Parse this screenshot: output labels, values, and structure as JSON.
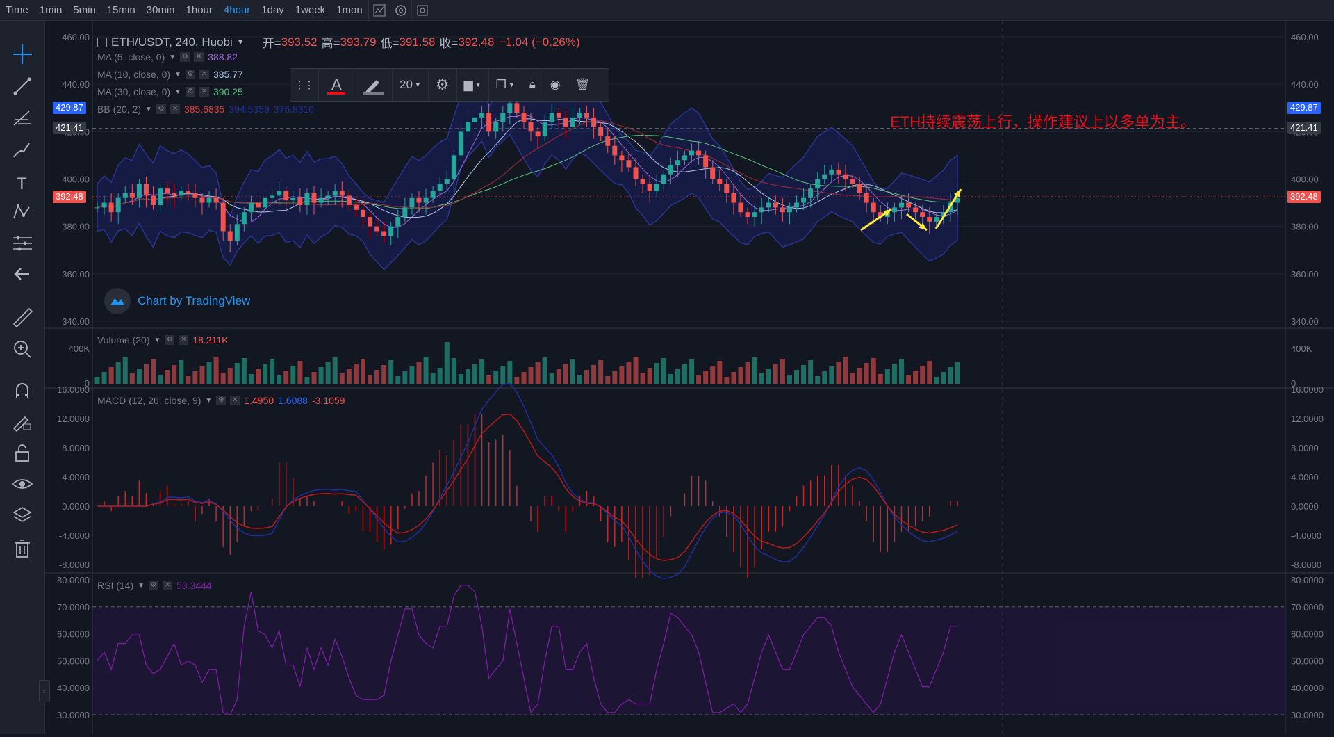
{
  "toolbar": {
    "timeframes": [
      "Time",
      "1min",
      "5min",
      "15min",
      "30min",
      "1hour",
      "4hour",
      "1day",
      "1week",
      "1mon"
    ],
    "active_timeframe": "4hour"
  },
  "sidebar": {
    "tools": [
      "crosshair-icon",
      "trend-line-icon",
      "fib-icon",
      "brush-icon",
      "text-icon",
      "pattern-icon",
      "forecast-icon",
      "back-arrow-icon",
      "ruler-icon",
      "zoom-in-icon",
      "magnet-icon",
      "lock-draw-icon",
      "unlock-icon",
      "eye-icon",
      "layers-icon",
      "trash-icon"
    ]
  },
  "main_legend": {
    "symbol": "ETH/USDT, 240, Huobi",
    "open_label": "开=",
    "open": "393.52",
    "high_label": "高=",
    "high": "393.79",
    "low_label": "低=",
    "low": "391.58",
    "close_label": "收=",
    "close": "392.48",
    "change": "−1.04 (−0.26%)"
  },
  "indicators": [
    {
      "label": "MA (5, close, 0)",
      "value": "388.82",
      "color": "#9c6bd8"
    },
    {
      "label": "MA (10, close, 0)",
      "value": "385.77",
      "color": "#b2c8e8"
    },
    {
      "label": "MA (30, close, 0)",
      "value": "390.25",
      "color": "#58c27d"
    },
    {
      "label": "BB (20, 2)",
      "value": "385.6835",
      "value2": "394.5359",
      "value3": "376.8310",
      "color": "#e04040"
    }
  ],
  "floating_toolbar": {
    "line_width": "20"
  },
  "price_axis": {
    "ticks": [
      "460.00",
      "440.00",
      "420.00",
      "400.00",
      "380.00",
      "360.00",
      "340.00"
    ],
    "tag_upper": "429.87",
    "tag_mid": "421.41",
    "tag_last": "392.48"
  },
  "annotation_text": "ETH持续震荡上行，操作建议上以多单为主。",
  "watermark": "Chart by TradingView",
  "volume_pane": {
    "legend": "Volume (20)",
    "value": "18.211K",
    "ticks": [
      "400K",
      "0"
    ]
  },
  "macd_pane": {
    "legend": "MACD (12, 26, close, 9)",
    "value1": "1.4950",
    "value2": "1.6088",
    "value3": "-3.1059",
    "ticks": [
      "16.0000",
      "12.0000",
      "8.0000",
      "4.0000",
      "0.0000",
      "-4.0000",
      "-8.0000"
    ]
  },
  "rsi_pane": {
    "legend": "RSI (14)",
    "value": "53.3444",
    "ticks": [
      "80.0000",
      "70.0000",
      "60.0000",
      "50.0000",
      "40.0000",
      "30.0000"
    ]
  },
  "colors": {
    "up": "#26a69a",
    "down": "#ef5350",
    "bb_fill": "#1a237e",
    "annotation": "#e8101a",
    "arrow": "#ffeb3b"
  },
  "chart_data": {
    "type": "line",
    "title": "ETH/USDT, 240, Huobi",
    "xlabel": "",
    "ylabel": "",
    "ylim": [
      340,
      462
    ],
    "series": [
      {
        "values": [
          388,
          390,
          386,
          392,
          394,
          392,
          398,
          393,
          389,
          396,
          394,
          393,
          395,
          394,
          392,
          390,
          392,
          390,
          378,
          374,
          381,
          386,
          390,
          388,
          392,
          393,
          395,
          391,
          392,
          389,
          394,
          390,
          392,
          393,
          395,
          393,
          389,
          387,
          384,
          380,
          378,
          376,
          380,
          384,
          388,
          392,
          390,
          392,
          395,
          398,
          400,
          410,
          420,
          424,
          426,
          428,
          420,
          424,
          428,
          432,
          428,
          424,
          420,
          418,
          424,
          428,
          426,
          422,
          426,
          428,
          426,
          422,
          418,
          414,
          410,
          408,
          405,
          400,
          398,
          395,
          398,
          402,
          406,
          408,
          410,
          412,
          410,
          405,
          400,
          398,
          394,
          390,
          386,
          384,
          386,
          388,
          390,
          388,
          386,
          388,
          390,
          392,
          396,
          400,
          402,
          404,
          402,
          400,
          398,
          394,
          390,
          386,
          384,
          386,
          388,
          390,
          388,
          386,
          384,
          382,
          384,
          386,
          390,
          392
        ]
      }
    ]
  }
}
